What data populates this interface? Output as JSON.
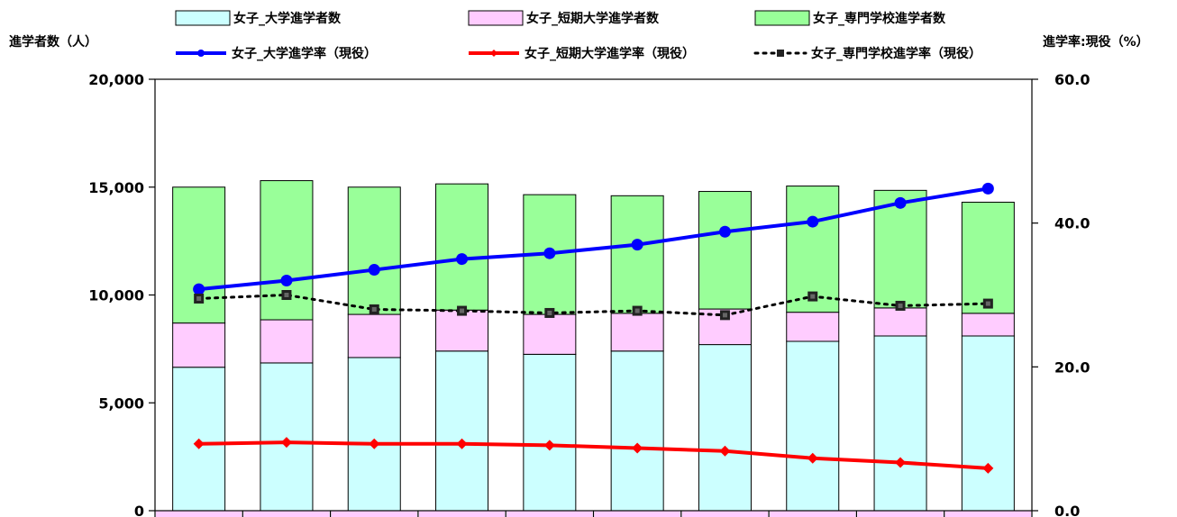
{
  "chart_data": {
    "type": "bar",
    "categories": [
      "",
      "",
      "",
      "",
      "",
      "",
      "",
      "",
      "",
      ""
    ],
    "y_left": {
      "label": "進学者数（人）",
      "range": [
        0,
        20000
      ],
      "ticks": [
        "0",
        "5,000",
        "10,000",
        "15,000",
        "20,000"
      ],
      "tick_values": [
        0,
        5000,
        10000,
        15000,
        20000
      ]
    },
    "y_right": {
      "label": "進学率:現役（%）",
      "range": [
        0,
        60
      ],
      "ticks": [
        "0.0",
        "20.0",
        "40.0",
        "60.0"
      ],
      "tick_values": [
        0,
        20,
        40,
        60
      ]
    },
    "bar_series": [
      {
        "name": "女子_大学進学者数",
        "color": "#ccffff",
        "values": [
          6650,
          6850,
          7100,
          7400,
          7250,
          7400,
          7700,
          7850,
          8100,
          8100
        ]
      },
      {
        "name": "女子_短期大学進学者数",
        "color": "#ffccff",
        "values": [
          2050,
          2000,
          2000,
          1900,
          1850,
          1750,
          1650,
          1350,
          1300,
          1050
        ]
      },
      {
        "name": "女子_専門学校進学者数",
        "color": "#99ff99",
        "values": [
          6300,
          6450,
          5900,
          5850,
          5550,
          5450,
          5450,
          5850,
          5450,
          5150
        ]
      }
    ],
    "line_series": [
      {
        "name": "女子_大学進学率（現役）",
        "color": "#0000ff",
        "style": "solid",
        "marker": "circle",
        "values": [
          30.8,
          32.0,
          33.5,
          35.0,
          35.8,
          37.0,
          38.8,
          40.2,
          42.8,
          44.8
        ]
      },
      {
        "name": "女子_短期大学進学率（現役）",
        "color": "#ff0000",
        "style": "solid",
        "marker": "diamond",
        "values": [
          9.3,
          9.5,
          9.3,
          9.3,
          9.1,
          8.7,
          8.3,
          7.3,
          6.7,
          5.9
        ]
      },
      {
        "name": "女子_専門学校進学率（現役）",
        "color": "#000000",
        "style": "dotted",
        "marker": "square",
        "values": [
          29.5,
          30.0,
          28.0,
          27.8,
          27.5,
          27.8,
          27.2,
          29.8,
          28.5,
          28.8
        ]
      }
    ],
    "grid": false,
    "legend_position": "top"
  }
}
